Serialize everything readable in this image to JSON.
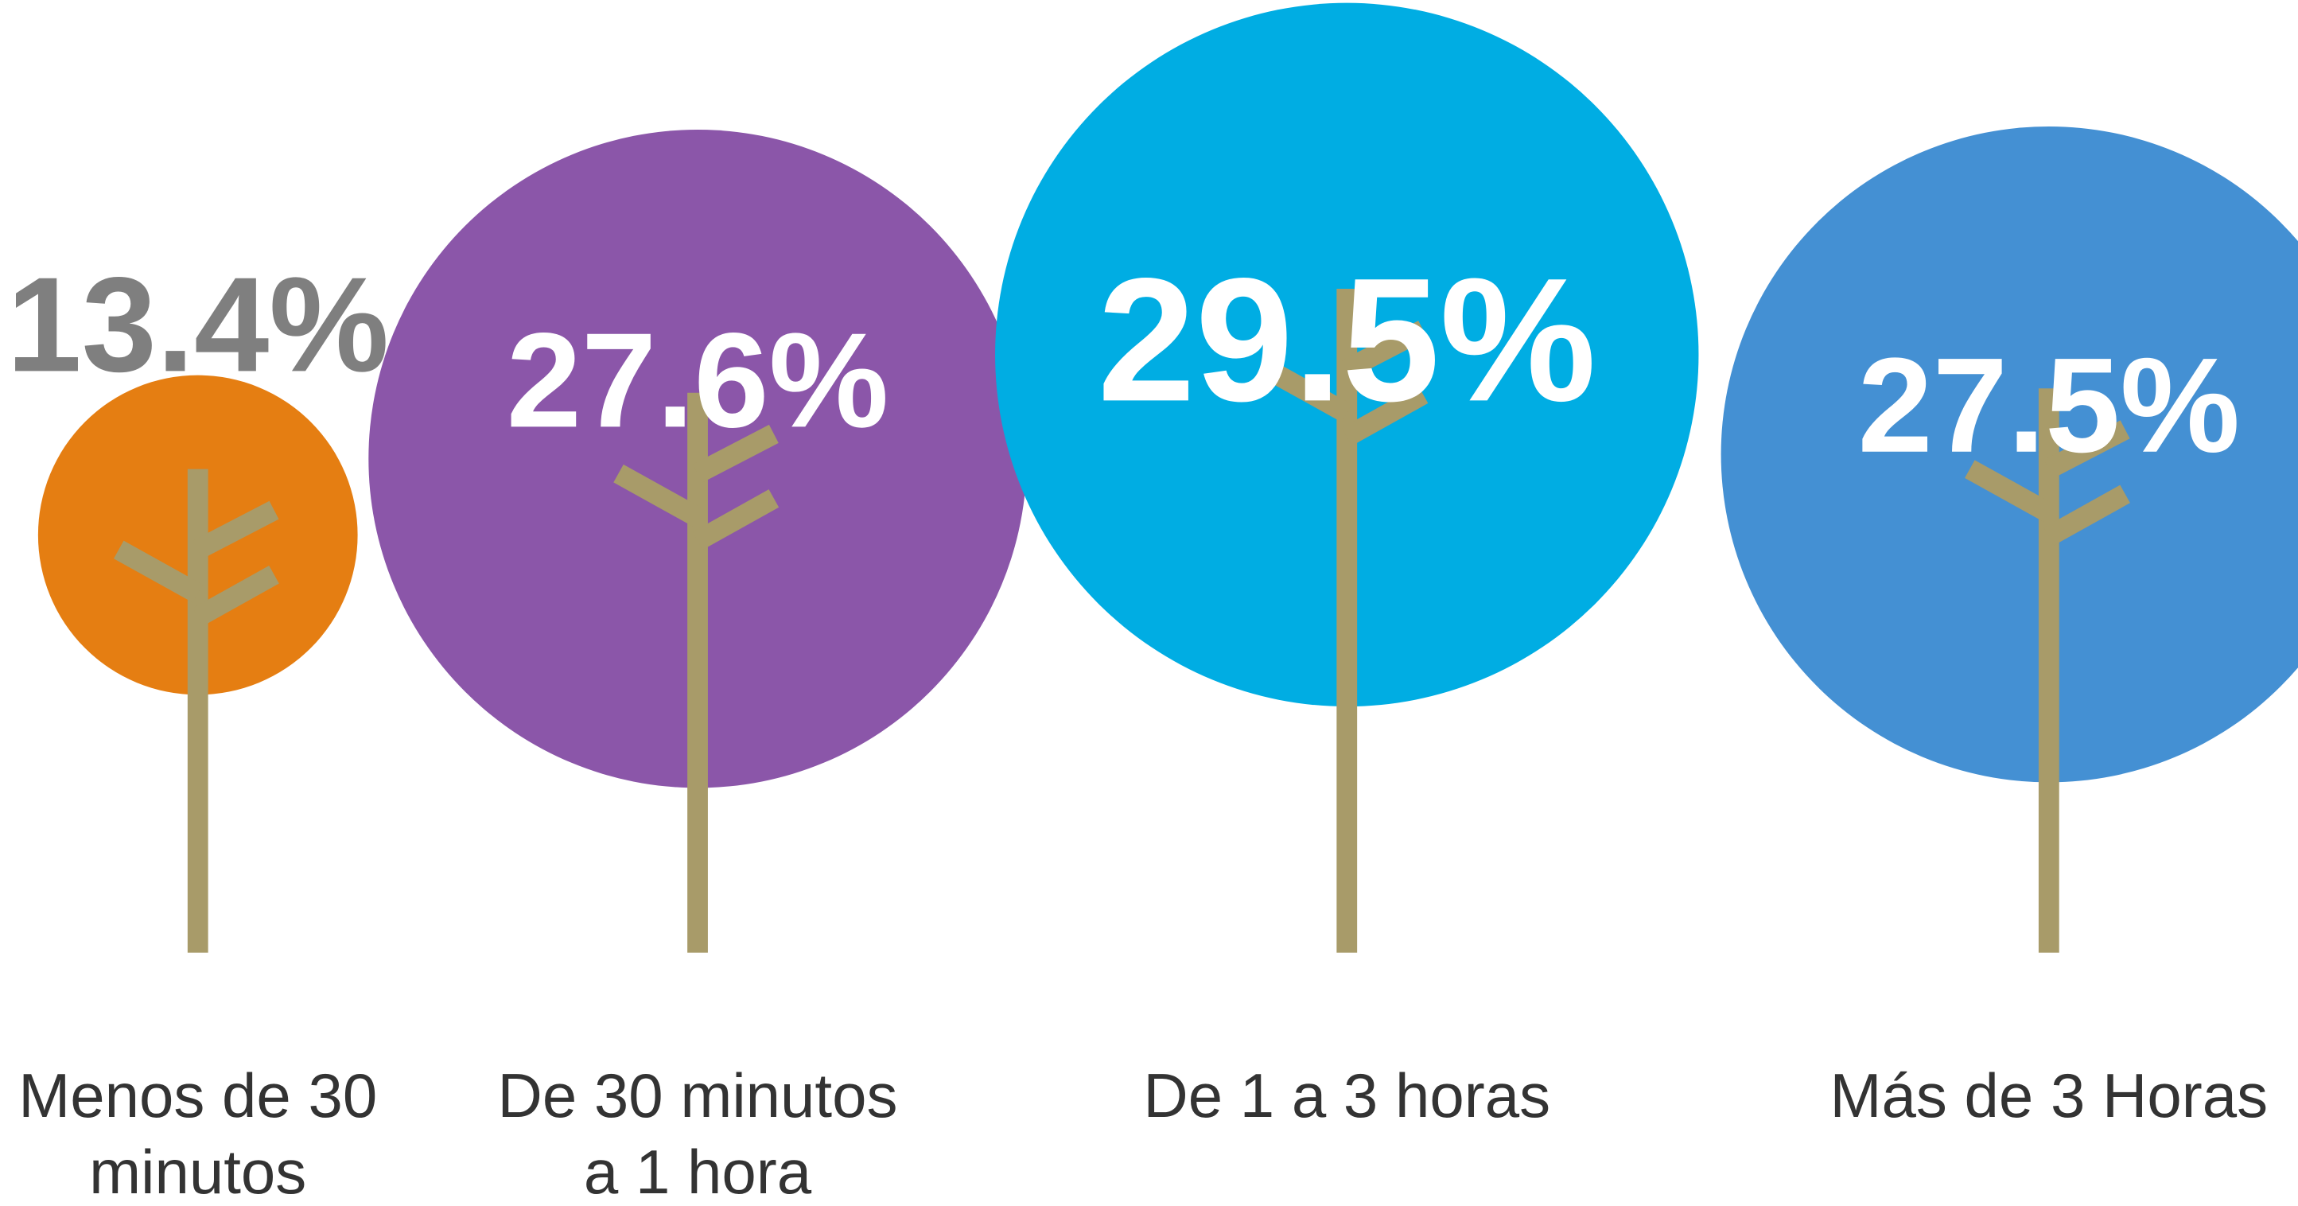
{
  "chart_data": {
    "type": "tree",
    "categories": [
      [
        "Menos de 30",
        "minutos"
      ],
      [
        "De 30 minutos",
        "a 1 hora"
      ],
      [
        "De 1 a 3 horas"
      ],
      [
        "Más de 3 Horas"
      ]
    ],
    "values": [
      13.4,
      27.6,
      29.5,
      27.5
    ],
    "value_labels": [
      "13.4%",
      "27.6%",
      "29.5%",
      "27.5%"
    ],
    "colors": [
      "#e57e12",
      "#8b56a9",
      "#00ade3",
      "#4490d3"
    ],
    "label_colors": [
      "#7f7f7f",
      "#ffffff",
      "#ffffff",
      "#ffffff"
    ],
    "trunk_color": "#a89b69"
  }
}
